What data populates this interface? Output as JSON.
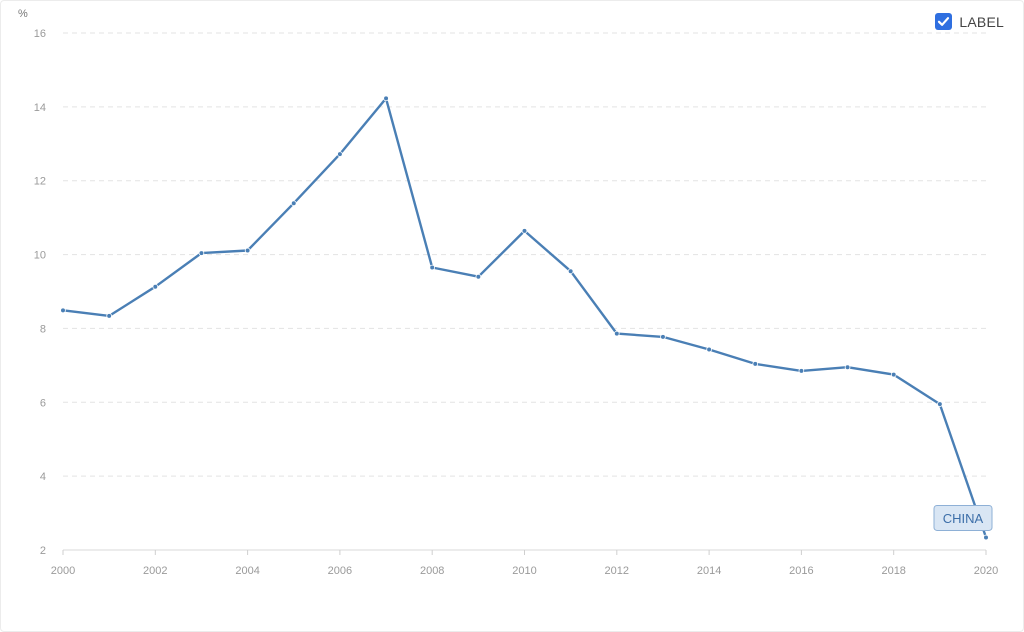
{
  "legend_toggle": {
    "label": "LABEL",
    "checked": true,
    "icon": "checkmark-icon",
    "color": "#2f6fe0"
  },
  "chart_data": {
    "type": "line",
    "ylabel": "%",
    "x": [
      2000,
      2001,
      2002,
      2003,
      2004,
      2005,
      2006,
      2007,
      2008,
      2009,
      2010,
      2011,
      2012,
      2013,
      2014,
      2015,
      2016,
      2017,
      2018,
      2019,
      2020
    ],
    "series": [
      {
        "name": "CHINA",
        "color": "#4a7fb5",
        "values": [
          8.49,
          8.34,
          9.13,
          10.04,
          10.11,
          11.39,
          12.72,
          14.23,
          9.65,
          9.4,
          10.64,
          9.55,
          7.86,
          7.77,
          7.43,
          7.04,
          6.85,
          6.95,
          6.75,
          5.95,
          2.34
        ]
      }
    ],
    "xlim": [
      2000,
      2020
    ],
    "ylim": [
      2,
      16
    ],
    "x_ticks": [
      2000,
      2002,
      2004,
      2006,
      2008,
      2010,
      2012,
      2014,
      2016,
      2018,
      2020
    ],
    "y_ticks": [
      2,
      4,
      6,
      8,
      10,
      12,
      14,
      16
    ],
    "grid": true,
    "grid_style": "dashed-horizontal",
    "end_label": "CHINA"
  }
}
